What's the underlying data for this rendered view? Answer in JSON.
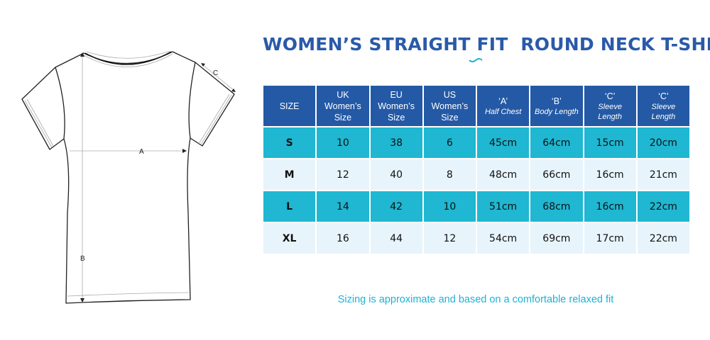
{
  "title": "WOMEN’S STRAIGHT FIT  ROUND NECK T-SHIRT",
  "diagram": {
    "label_a": "A",
    "label_b": "B",
    "label_c": "C"
  },
  "colors": {
    "title": "#2a5aa8",
    "header": "#2459a5",
    "teal_row": "#1fb7d1",
    "light_row": "#e8f4fb",
    "note": "#1cb3d4"
  },
  "table": {
    "headers": [
      {
        "line1": "SIZE",
        "line2": "",
        "line3": ""
      },
      {
        "line1": "UK",
        "line2": "Women’s",
        "line3": "Size"
      },
      {
        "line1": "EU",
        "line2": "Women’s",
        "line3": "Size"
      },
      {
        "line1": "US",
        "line2": "Women’s",
        "line3": "Size"
      },
      {
        "line1": "‘A’",
        "line2": "Half Chest",
        "line3": ""
      },
      {
        "line1": "‘B’",
        "line2": "Body Length",
        "line3": ""
      },
      {
        "line1": "‘C’",
        "line2": "Sleeve",
        "line3": "Length"
      },
      {
        "line1": "‘C’",
        "line2": "Sleeve",
        "line3": "Length"
      }
    ],
    "rows": [
      [
        "S",
        "10",
        "38",
        "6",
        "45cm",
        "64cm",
        "15cm",
        "20cm"
      ],
      [
        "M",
        "12",
        "40",
        "8",
        "48cm",
        "66cm",
        "16cm",
        "21cm"
      ],
      [
        "L",
        "14",
        "42",
        "10",
        "51cm",
        "68cm",
        "16cm",
        "22cm"
      ],
      [
        "XL",
        "16",
        "44",
        "12",
        "54cm",
        "69cm",
        "17cm",
        "22cm"
      ]
    ]
  },
  "note": "Sizing is approximate and based on a comfortable relaxed fit"
}
